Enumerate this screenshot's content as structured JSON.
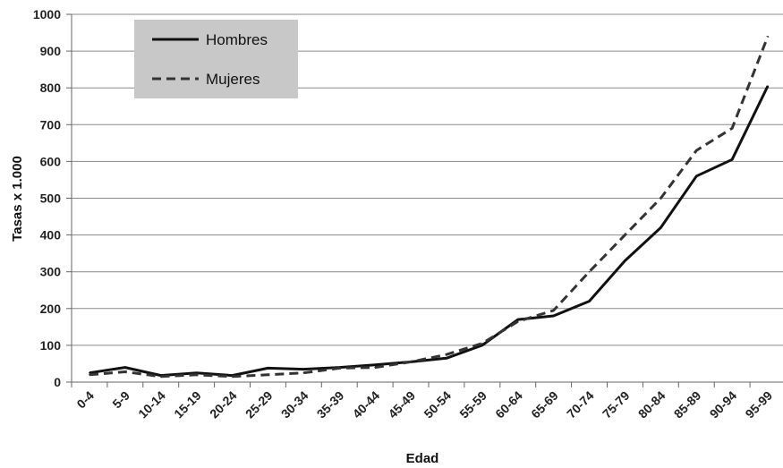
{
  "chart_data": {
    "type": "line",
    "title": "",
    "xlabel": "Edad",
    "ylabel": "Tasas x 1.000",
    "ylim": [
      0,
      1000
    ],
    "yticks": [
      0,
      100,
      200,
      300,
      400,
      500,
      600,
      700,
      800,
      900,
      1000
    ],
    "grid": true,
    "legend_position": "top-left",
    "categories": [
      "0-4",
      "5-9",
      "10-14",
      "15-19",
      "20-24",
      "25-29",
      "30-34",
      "35-39",
      "40-44",
      "45-49",
      "50-54",
      "55-59",
      "60-64",
      "65-69",
      "70-74",
      "75-79",
      "80-84",
      "85-89",
      "90-94",
      "95-99"
    ],
    "series": [
      {
        "name": "Hombres",
        "style": "solid",
        "color": "#111111",
        "values": [
          25,
          40,
          18,
          25,
          18,
          38,
          35,
          40,
          47,
          55,
          65,
          100,
          170,
          180,
          220,
          330,
          420,
          560,
          605,
          805
        ]
      },
      {
        "name": "Mujeres",
        "style": "dashed",
        "color": "#333333",
        "values": [
          20,
          28,
          15,
          20,
          15,
          20,
          25,
          38,
          40,
          55,
          75,
          105,
          165,
          195,
          300,
          400,
          500,
          630,
          690,
          940
        ]
      }
    ]
  }
}
